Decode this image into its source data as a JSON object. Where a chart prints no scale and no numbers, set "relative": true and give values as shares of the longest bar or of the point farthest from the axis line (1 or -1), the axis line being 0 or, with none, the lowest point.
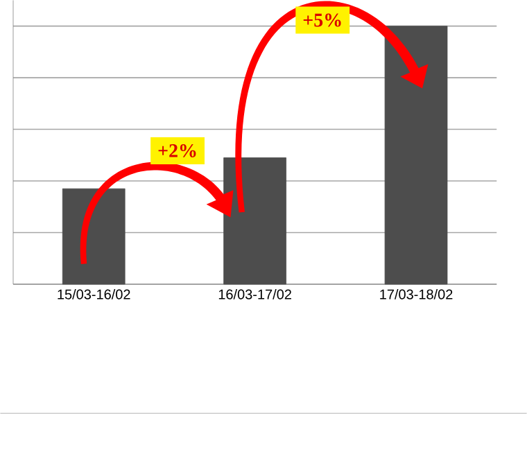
{
  "chart_data": {
    "type": "bar",
    "categories": [
      "15/03-16/02",
      "16/03-17/02",
      "17/03-18/02"
    ],
    "values": [
      0.37,
      0.49,
      1
    ],
    "color": "#4d4d4d",
    "relative": true,
    "grid": "y",
    "annotations": [
      "+2%",
      "+5%"
    ]
  }
}
